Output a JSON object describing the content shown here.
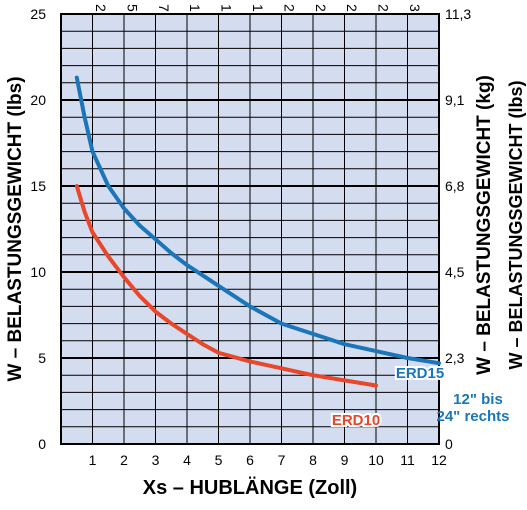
{
  "chart_data": {
    "type": "line",
    "xlabel": "Xs – HUBLÄNGE (Zoll)",
    "ylabel_left": "W – BELASTUNGSGEWICHT (lbs)",
    "ylabel_right": "W – BELASTUNGSGEWICHT (kg)",
    "ylabel_right_cut": "W – BELASTUNGSGEWICHT (lbs)",
    "xlim": [
      0,
      12
    ],
    "ylim": [
      0,
      25
    ],
    "x_ticks": [
      "1",
      "2",
      "3",
      "4",
      "5",
      "6",
      "7",
      "8",
      "9",
      "10",
      "11",
      "12"
    ],
    "y_ticks_left": [
      "0",
      "5",
      "10",
      "15",
      "20",
      "25"
    ],
    "y_ticks_right": [
      {
        "value": 0,
        "label": "0"
      },
      {
        "value": 5,
        "label": "2,3"
      },
      {
        "value": 10,
        "label": "4,5"
      },
      {
        "value": 15,
        "label": "6,8"
      },
      {
        "value": 20,
        "label": "9,1"
      },
      {
        "value": 25,
        "label": "11,3"
      }
    ],
    "top_ticks_cut": [
      "2",
      "5",
      "7",
      "1",
      "1",
      "1",
      "2",
      "2",
      "2",
      "2",
      "3"
    ],
    "grid": true,
    "series": [
      {
        "name": "ERD15",
        "color": "#1a76b8",
        "label_color": "#1a76b8",
        "points": [
          [
            0.5,
            21.3
          ],
          [
            0.75,
            19.0
          ],
          [
            1.0,
            17.0
          ],
          [
            1.5,
            15.0
          ],
          [
            2.0,
            13.7
          ],
          [
            2.5,
            12.7
          ],
          [
            3.0,
            11.9
          ],
          [
            3.5,
            11.1
          ],
          [
            4.0,
            10.4
          ],
          [
            4.5,
            9.8
          ],
          [
            5.0,
            9.2
          ],
          [
            6.0,
            8.0
          ],
          [
            7.0,
            7.0
          ],
          [
            8.0,
            6.4
          ],
          [
            9.0,
            5.8
          ],
          [
            10.0,
            5.4
          ],
          [
            11.0,
            5.0
          ],
          [
            12.0,
            4.7
          ]
        ]
      },
      {
        "name": "ERD10",
        "color": "#e8472b",
        "label_color": "#e8472b",
        "points": [
          [
            0.5,
            15.0
          ],
          [
            0.75,
            13.5
          ],
          [
            1.0,
            12.3
          ],
          [
            1.5,
            10.9
          ],
          [
            2.0,
            9.7
          ],
          [
            2.5,
            8.6
          ],
          [
            3.0,
            7.7
          ],
          [
            3.5,
            7.0
          ],
          [
            4.0,
            6.4
          ],
          [
            4.5,
            5.8
          ],
          [
            5.0,
            5.3
          ],
          [
            6.0,
            4.8
          ],
          [
            7.0,
            4.4
          ],
          [
            8.0,
            4.0
          ],
          [
            9.0,
            3.7
          ],
          [
            10.0,
            3.4
          ]
        ]
      }
    ],
    "annotation": {
      "lines": [
        "12\" bis",
        "24\" rechts"
      ]
    }
  }
}
